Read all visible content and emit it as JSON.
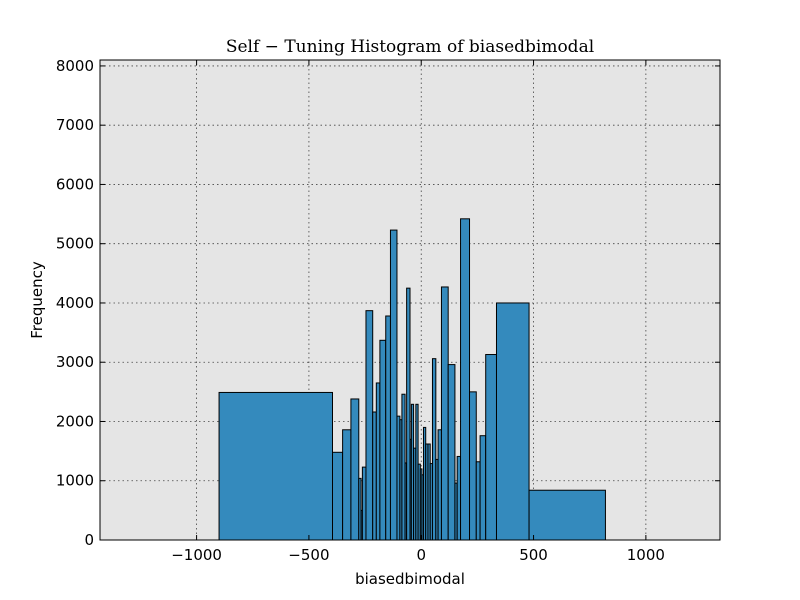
{
  "chart_data": {
    "type": "bar",
    "title": "Self − Tuning Histogram of biasedbimodal",
    "xlabel": "biasedbimodal",
    "ylabel": "Frequency",
    "xlim": [
      -1430,
      1330
    ],
    "ylim": [
      0,
      8100
    ],
    "x_ticks": [
      -1000,
      -500,
      0,
      500,
      1000
    ],
    "x_tick_labels": [
      "−1000",
      "−500",
      "0",
      "500",
      "1000"
    ],
    "y_ticks": [
      0,
      1000,
      2000,
      3000,
      4000,
      5000,
      6000,
      7000,
      8000
    ],
    "y_tick_labels": [
      "0",
      "1000",
      "2000",
      "3000",
      "4000",
      "5000",
      "6000",
      "7000",
      "8000"
    ],
    "grid": true,
    "bar_color": "#348abd",
    "background_color": "#e5e5e5",
    "bins": [
      {
        "start": -900,
        "end": -395,
        "value": 2490
      },
      {
        "start": -395,
        "end": -350,
        "value": 1480
      },
      {
        "start": -350,
        "end": -313,
        "value": 1860
      },
      {
        "start": -313,
        "end": -278,
        "value": 2380
      },
      {
        "start": -278,
        "end": -268,
        "value": 1040
      },
      {
        "start": -268,
        "end": -262,
        "value": 500
      },
      {
        "start": -262,
        "end": -246,
        "value": 1230
      },
      {
        "start": -246,
        "end": -216,
        "value": 3870
      },
      {
        "start": -216,
        "end": -200,
        "value": 2160
      },
      {
        "start": -200,
        "end": -184,
        "value": 2650
      },
      {
        "start": -184,
        "end": -158,
        "value": 3370
      },
      {
        "start": -158,
        "end": -137,
        "value": 3780
      },
      {
        "start": -137,
        "end": -108,
        "value": 5230
      },
      {
        "start": -108,
        "end": -95,
        "value": 2090
      },
      {
        "start": -95,
        "end": -86,
        "value": 2030
      },
      {
        "start": -86,
        "end": -72,
        "value": 2460
      },
      {
        "start": -72,
        "end": -65,
        "value": 1300
      },
      {
        "start": -65,
        "end": -50,
        "value": 4250
      },
      {
        "start": -50,
        "end": -44,
        "value": 1700
      },
      {
        "start": -44,
        "end": -34,
        "value": 2290
      },
      {
        "start": -34,
        "end": -24,
        "value": 1550
      },
      {
        "start": -24,
        "end": -14,
        "value": 2290
      },
      {
        "start": -14,
        "end": -4,
        "value": 1280
      },
      {
        "start": -4,
        "end": 3,
        "value": 1200
      },
      {
        "start": 3,
        "end": 10,
        "value": 1100
      },
      {
        "start": 10,
        "end": 20,
        "value": 1900
      },
      {
        "start": 20,
        "end": 30,
        "value": 1620
      },
      {
        "start": 30,
        "end": 40,
        "value": 1620
      },
      {
        "start": 40,
        "end": 50,
        "value": 1290
      },
      {
        "start": 50,
        "end": 65,
        "value": 3060
      },
      {
        "start": 65,
        "end": 75,
        "value": 1360
      },
      {
        "start": 75,
        "end": 90,
        "value": 1860
      },
      {
        "start": 90,
        "end": 120,
        "value": 4270
      },
      {
        "start": 120,
        "end": 150,
        "value": 2960
      },
      {
        "start": 150,
        "end": 160,
        "value": 960
      },
      {
        "start": 160,
        "end": 175,
        "value": 1410
      },
      {
        "start": 175,
        "end": 215,
        "value": 5420
      },
      {
        "start": 215,
        "end": 245,
        "value": 2500
      },
      {
        "start": 245,
        "end": 262,
        "value": 1320
      },
      {
        "start": 262,
        "end": 287,
        "value": 1760
      },
      {
        "start": 287,
        "end": 335,
        "value": 3130
      },
      {
        "start": 335,
        "end": 480,
        "value": 4000
      },
      {
        "start": 480,
        "end": 820,
        "value": 840
      }
    ]
  }
}
